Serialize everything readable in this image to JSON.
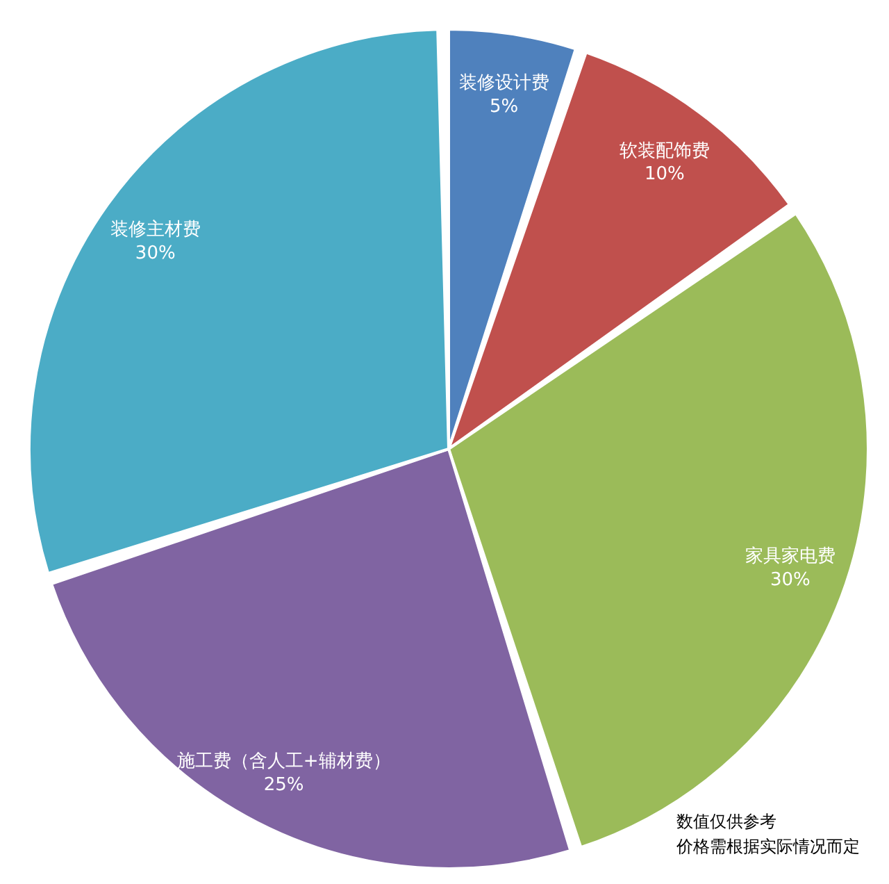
{
  "chart_data": {
    "type": "pie",
    "categories": [
      "装修设计费",
      "软装配饰费",
      "家具家电费",
      "施工费（含人工+辅材费）",
      "装修主材费"
    ],
    "values": [
      5,
      10,
      30,
      25,
      30
    ],
    "value_labels": [
      "5%",
      "10%",
      "30%",
      "25%",
      "30%"
    ],
    "colors": [
      "#4f81bd",
      "#c0504d",
      "#9bbb59",
      "#8064a2",
      "#4bacc6"
    ],
    "legend": false,
    "annotations": [
      "数值仅供参考",
      "价格需根据实际情况而定"
    ]
  }
}
